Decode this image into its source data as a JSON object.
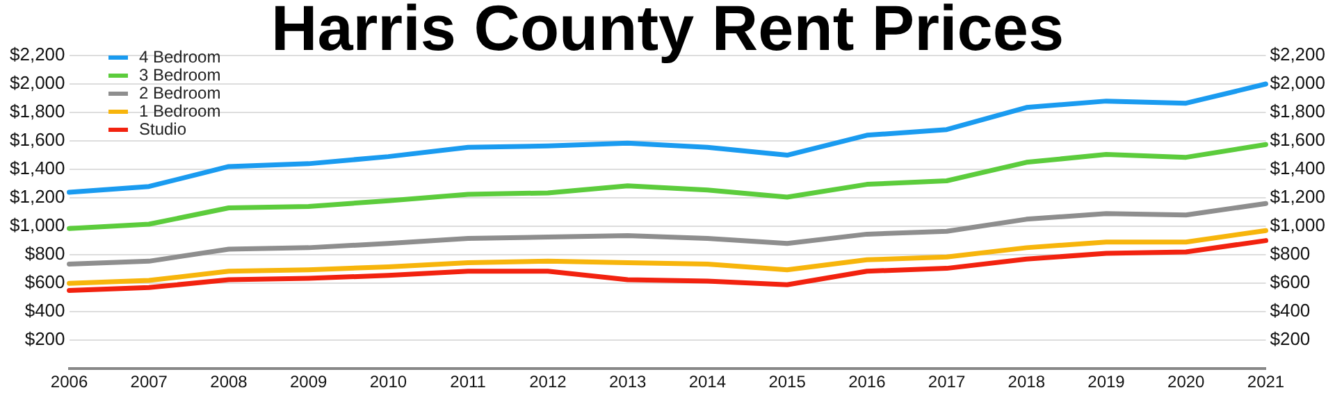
{
  "chart_data": {
    "type": "line",
    "title": "Harris County Rent Prices",
    "categories": [
      "2006",
      "2007",
      "2008",
      "2009",
      "2010",
      "2011",
      "2012",
      "2013",
      "2014",
      "2015",
      "2016",
      "2017",
      "2018",
      "2019",
      "2020",
      "2021"
    ],
    "series": [
      {
        "name": "4 Bedroom",
        "color": "#1a9bf0",
        "values": [
          1240,
          1280,
          1420,
          1440,
          1490,
          1555,
          1565,
          1585,
          1555,
          1500,
          1640,
          1680,
          1835,
          1880,
          1865,
          2000
        ]
      },
      {
        "name": "3 Bedroom",
        "color": "#5ccc3c",
        "values": [
          985,
          1015,
          1130,
          1140,
          1180,
          1225,
          1235,
          1285,
          1255,
          1205,
          1295,
          1320,
          1450,
          1505,
          1485,
          1575
        ]
      },
      {
        "name": "2 Bedroom",
        "color": "#8e8e8e",
        "values": [
          735,
          755,
          840,
          850,
          880,
          915,
          925,
          935,
          915,
          880,
          945,
          965,
          1050,
          1090,
          1080,
          1160
        ]
      },
      {
        "name": "1 Bedroom",
        "color": "#f7b50c",
        "values": [
          600,
          620,
          685,
          695,
          715,
          745,
          755,
          745,
          735,
          695,
          765,
          785,
          850,
          890,
          890,
          970
        ]
      },
      {
        "name": "Studio",
        "color": "#f2220f",
        "values": [
          550,
          570,
          625,
          635,
          655,
          685,
          685,
          625,
          615,
          590,
          685,
          705,
          770,
          810,
          820,
          900
        ]
      }
    ],
    "ylim": [
      0,
      2200
    ],
    "yticks": [
      {
        "value": 0,
        "label": null
      },
      {
        "value": 200,
        "label": "$200"
      },
      {
        "value": 400,
        "label": "$400"
      },
      {
        "value": 600,
        "label": "$600"
      },
      {
        "value": 800,
        "label": "$800"
      },
      {
        "value": 1000,
        "label": "$1,000"
      },
      {
        "value": 1200,
        "label": "$1,200"
      },
      {
        "value": 1400,
        "label": "$1,400"
      },
      {
        "value": 1600,
        "label": "$1,600"
      },
      {
        "value": 1800,
        "label": "$1,800"
      },
      {
        "value": 2000,
        "label": "$2,000"
      },
      {
        "value": 2200,
        "label": "$2,200"
      }
    ],
    "y2lim": [
      0,
      2200
    ],
    "y2ticks": [
      {
        "value": 0,
        "label": null
      },
      {
        "value": 200,
        "label": "$200"
      },
      {
        "value": 400,
        "label": "$400"
      },
      {
        "value": 600,
        "label": "$600"
      },
      {
        "value": 800,
        "label": "$800"
      },
      {
        "value": 1000,
        "label": "$1,000"
      },
      {
        "value": 1200,
        "label": "$1,200"
      },
      {
        "value": 1400,
        "label": "$1,400"
      },
      {
        "value": 1600,
        "label": "$1,600"
      },
      {
        "value": 1800,
        "label": "$1,800"
      },
      {
        "value": 2000,
        "label": "$2,000"
      },
      {
        "value": 2200,
        "label": "$2,200"
      }
    ],
    "grid": "y",
    "legend": "top left",
    "marker": "none",
    "line_style": "solid"
  }
}
